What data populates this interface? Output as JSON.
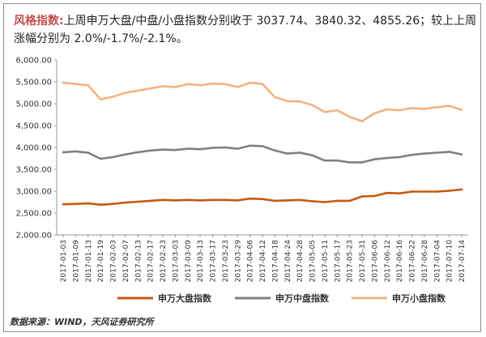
{
  "headline": {
    "tag": "风格指数",
    "colon": ":",
    "text": "上周申万大盘/中盘/小盘指数分别收于 3037.74、3840.32、4855.26；较上上周涨幅分别为 2.0%/-1.7%/-2.1%。"
  },
  "source": "数据来源：WIND，天风证券研究所",
  "chart_data": {
    "type": "line",
    "title": "",
    "xlabel": "",
    "ylabel": "",
    "ylim": [
      2000,
      6000
    ],
    "yticks": [
      "2,000.00",
      "2,500.00",
      "3,000.00",
      "3,500.00",
      "4,000.00",
      "4,500.00",
      "5,000.00",
      "5,500.00",
      "6,000.00"
    ],
    "grid": false,
    "legend_position": "bottom",
    "x_tick_labels": [
      "2017-01-03",
      "2017-01-09",
      "2017-01-13",
      "2017-01-19",
      "2017-02-03",
      "2017-02-07",
      "2017-02-13",
      "2017-02-17",
      "2017-02-23",
      "2017-03-03",
      "2017-03-09",
      "2017-03-13",
      "2017-03-17",
      "2017-03-23",
      "2017-03-29",
      "2017-04-06",
      "2017-04-12",
      "2017-04-18",
      "2017-04-24",
      "2017-04-28",
      "2017-05-05",
      "2017-05-11",
      "2017-05-17",
      "2017-05-23",
      "2017-05-31",
      "2017-06-06",
      "2017-06-12",
      "2017-06-16",
      "2017-06-22",
      "2017-06-28",
      "2017-07-04",
      "2017-07-10",
      "2017-07-14"
    ],
    "series": [
      {
        "name": "申万大盘指数",
        "color": "#c55a11",
        "values": [
          2700,
          2710,
          2720,
          2690,
          2710,
          2740,
          2760,
          2780,
          2800,
          2790,
          2800,
          2790,
          2800,
          2800,
          2790,
          2830,
          2820,
          2780,
          2790,
          2800,
          2770,
          2750,
          2780,
          2780,
          2880,
          2890,
          2960,
          2950,
          2990,
          2990,
          2990,
          3010,
          3040
        ]
      },
      {
        "name": "申万中盘指数",
        "color": "#808080",
        "values": [
          3890,
          3910,
          3880,
          3740,
          3780,
          3840,
          3890,
          3930,
          3950,
          3940,
          3970,
          3960,
          3990,
          4000,
          3970,
          4040,
          4030,
          3930,
          3860,
          3880,
          3820,
          3700,
          3700,
          3660,
          3660,
          3730,
          3760,
          3780,
          3830,
          3860,
          3880,
          3900,
          3840
        ]
      },
      {
        "name": "申万小盘指数",
        "color": "#f4b183",
        "values": [
          5480,
          5450,
          5420,
          5100,
          5160,
          5250,
          5300,
          5350,
          5400,
          5380,
          5450,
          5420,
          5460,
          5450,
          5380,
          5480,
          5450,
          5150,
          5060,
          5050,
          4970,
          4810,
          4850,
          4700,
          4600,
          4780,
          4870,
          4850,
          4900,
          4880,
          4920,
          4950,
          4860
        ]
      }
    ]
  }
}
